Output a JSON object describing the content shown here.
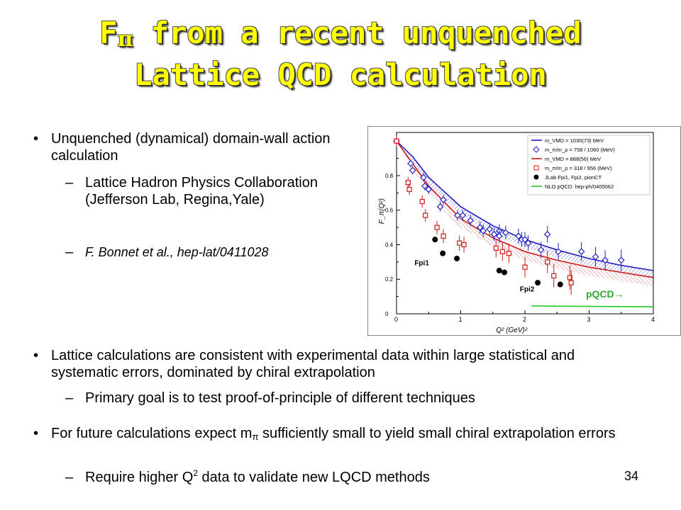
{
  "title": {
    "line1_prefix": "F",
    "line1_pi": "π",
    "line1_rest": " from a recent unquenched",
    "line2": "Lattice QCD calculation"
  },
  "bullets": {
    "b1": "Unquenched (dynamical) domain-wall action calculation",
    "b1_sub1": "Lattice Hadron Physics Collaboration (Jefferson Lab, Regina,Yale)",
    "b1_sub2": "F. Bonnet et al., hep-lat/0411028",
    "b2": "Lattice calculations are consistent with experimental data within large statistical and systematic errors, dominated by chiral extrapolation",
    "b2_sub1": "Primary goal is to test proof-of-principle of different techniques",
    "b3_part1": "For future calculations expect m",
    "b3_pi": "π",
    "b3_part2": " sufficiently small to yield small chiral extrapolation errors",
    "b3_sub1_part1": "Require higher Q",
    "b3_sub1_sup": "2",
    "b3_sub1_part2": " data to validate new LQCD methods",
    "bullet_mark": "•",
    "dash_mark": "–"
  },
  "page_number": "34",
  "colors": {
    "title": "#ffff00",
    "blue": "#2020c0",
    "red": "#d01818",
    "green": "#22cc22",
    "black": "#000000",
    "annot_green": "#33aa33"
  },
  "chart_data": {
    "type": "scatter",
    "xlabel": "Q² (GeV)²",
    "ylabel": "F_π(Q²)",
    "xlim": [
      0,
      4
    ],
    "ylim": [
      0,
      1.05
    ],
    "xticks": [
      "0",
      "1",
      "2",
      "3",
      "4"
    ],
    "yticks": [
      "0",
      "0.2",
      "0.4",
      "0.6",
      "0.8"
    ],
    "legend": [
      "m_VMD = 1030(73) MeV",
      "m_π/m_ρ = 758 / 1060 (MeV)",
      "m_VMD = 888(56) MeV",
      "m_π/m_ρ = 318 / 956 (MeV)",
      "JLab Fpi1, Fpi2, pionCT",
      "NLO pQCD: hep-ph/0405062"
    ],
    "legend_position": "top-right",
    "annotations": [
      "Fpi1",
      "Fpi2",
      "pQCD→"
    ],
    "series": [
      {
        "points": [
          [
            0.0,
            1.0
          ],
          [
            0.22,
            0.87
          ],
          [
            0.25,
            0.83
          ],
          [
            0.42,
            0.79
          ],
          [
            0.44,
            0.74
          ],
          [
            0.5,
            0.72
          ],
          [
            0.68,
            0.62
          ],
          [
            0.73,
            0.66
          ],
          [
            0.95,
            0.57
          ],
          [
            1.03,
            0.57
          ],
          [
            1.15,
            0.54
          ],
          [
            1.3,
            0.5
          ],
          [
            1.35,
            0.48
          ],
          [
            1.45,
            0.49
          ],
          [
            1.52,
            0.46
          ],
          [
            1.6,
            0.48
          ],
          [
            1.6,
            0.45
          ],
          [
            1.7,
            0.47
          ],
          [
            1.9,
            0.45
          ],
          [
            1.95,
            0.43
          ],
          [
            2.0,
            0.43
          ],
          [
            2.05,
            0.41
          ],
          [
            2.25,
            0.37
          ],
          [
            2.35,
            0.46
          ],
          [
            2.52,
            0.36
          ],
          [
            2.88,
            0.36
          ],
          [
            3.1,
            0.33
          ],
          [
            3.25,
            0.31
          ],
          [
            3.5,
            0.31
          ]
        ]
      },
      {
        "points": [
          [
            0.0,
            1.0
          ],
          [
            0.18,
            0.76
          ],
          [
            0.2,
            0.72
          ],
          [
            0.4,
            0.65
          ],
          [
            0.45,
            0.57
          ],
          [
            0.63,
            0.5
          ],
          [
            0.73,
            0.45
          ],
          [
            0.98,
            0.41
          ],
          [
            1.05,
            0.4
          ],
          [
            1.55,
            0.38
          ],
          [
            1.65,
            0.36
          ],
          [
            1.75,
            0.35
          ],
          [
            2.0,
            0.27
          ],
          [
            2.35,
            0.3
          ],
          [
            2.45,
            0.22
          ],
          [
            2.7,
            0.21
          ],
          [
            2.72,
            0.18
          ]
        ]
      },
      {
        "points": [
          [
            0.6,
            0.43
          ],
          [
            0.72,
            0.35
          ],
          [
            0.94,
            0.32
          ],
          [
            1.6,
            0.25
          ],
          [
            1.68,
            0.24
          ],
          [
            2.2,
            0.18
          ],
          [
            2.55,
            0.17
          ]
        ]
      },
      {
        "curve": [
          [
            0.0,
            1.0
          ],
          [
            0.25,
            0.91
          ],
          [
            0.5,
            0.79
          ],
          [
            1.0,
            0.62
          ],
          [
            1.5,
            0.51
          ],
          [
            2.0,
            0.43
          ],
          [
            2.5,
            0.37
          ],
          [
            3.0,
            0.32
          ],
          [
            3.5,
            0.28
          ],
          [
            4.0,
            0.25
          ]
        ]
      },
      {
        "curve": [
          [
            0.0,
            1.0
          ],
          [
            0.25,
            0.87
          ],
          [
            0.5,
            0.74
          ],
          [
            1.0,
            0.55
          ],
          [
            1.5,
            0.44
          ],
          [
            2.0,
            0.36
          ],
          [
            2.5,
            0.31
          ],
          [
            3.0,
            0.27
          ],
          [
            3.5,
            0.24
          ],
          [
            4.0,
            0.21
          ]
        ]
      },
      {
        "curve": [
          [
            2.1,
            0.045
          ],
          [
            4.0,
            0.04
          ]
        ]
      }
    ]
  }
}
